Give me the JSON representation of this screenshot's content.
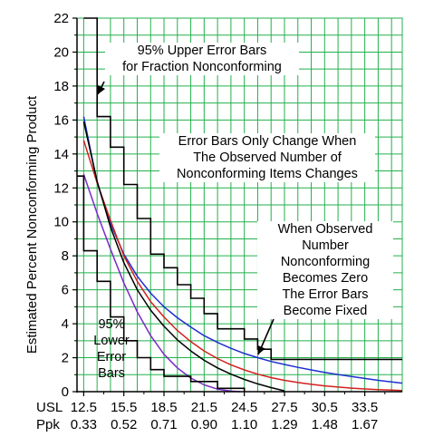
{
  "chart_data": {
    "type": "line",
    "title": "",
    "ylabel": "Estimated Percent Nonconforming Product",
    "xlabel": "",
    "x_row_labels": [
      "USL",
      "Ppk"
    ],
    "usl_ticks": [
      "12.5",
      "15.5",
      "18.5",
      "21.5",
      "24.5",
      "27.5",
      "30.5",
      "33.5"
    ],
    "ppk_ticks": [
      "0.33",
      "0.52",
      "0.71",
      "0.90",
      "1.10",
      "1.29",
      "1.48",
      "1.67"
    ],
    "xlim": [
      12.0,
      36.3
    ],
    "ylim": [
      0,
      22
    ],
    "ytick_labels": [
      "0",
      "2",
      "4",
      "6",
      "8",
      "10",
      "12",
      "14",
      "16",
      "18",
      "20",
      "22"
    ],
    "grid": true,
    "colors": {
      "grid": "#22b14c",
      "black": "#000000",
      "red": "#d42020",
      "blue": "#1f2fd0",
      "purple": "#7b2bc9"
    },
    "series": [
      {
        "color": "#1f2fd0",
        "x": [
          12.5,
          13.5,
          14.5,
          15.5,
          16.5,
          17.5,
          18.5,
          19.5,
          20.5,
          21.5,
          22.5,
          23.5,
          24.5,
          25.5,
          26.5,
          27.5,
          28.5,
          29.5,
          30.5,
          31.5,
          32.5,
          33.5,
          34.5,
          35.5,
          36.3
        ],
        "y": [
          16.2,
          12.3,
          9.9,
          8.1,
          6.8,
          5.8,
          5.0,
          4.35,
          3.8,
          3.3,
          2.9,
          2.55,
          2.25,
          2.0,
          1.78,
          1.6,
          1.43,
          1.28,
          1.14,
          1.01,
          0.89,
          0.78,
          0.67,
          0.57,
          0.5
        ]
      },
      {
        "color": "#d42020",
        "x": [
          12.5,
          13.5,
          14.5,
          15.5,
          16.5,
          17.5,
          18.5,
          19.5,
          20.5,
          21.5,
          22.5,
          23.5,
          24.5,
          25.5,
          26.5,
          27.5,
          28.5,
          29.5,
          30.5,
          31.5,
          32.5,
          33.5,
          34.5,
          35.5,
          36.3
        ],
        "y": [
          14.8,
          12.3,
          10.1,
          8.0,
          6.5,
          5.3,
          4.4,
          3.6,
          2.95,
          2.4,
          1.95,
          1.58,
          1.28,
          1.03,
          0.83,
          0.67,
          0.54,
          0.43,
          0.34,
          0.27,
          0.21,
          0.16,
          0.12,
          0.09,
          0.07
        ]
      },
      {
        "color": "#000000",
        "x": [
          12.5,
          13.5,
          14.5,
          15.5,
          16.5,
          17.5,
          18.5,
          19.5,
          20.5,
          21.5,
          22.5,
          23.5,
          24.5,
          25.5,
          26.5,
          27.5
        ],
        "y": [
          15.9,
          12.4,
          9.7,
          7.6,
          6.0,
          4.8,
          3.85,
          3.05,
          2.4,
          1.85,
          1.4,
          1.03,
          0.72,
          0.46,
          0.24,
          0.05
        ]
      },
      {
        "color": "#7b2bc9",
        "x": [
          12.5,
          13.5,
          14.5,
          15.5,
          16.5,
          17.5,
          18.5,
          19.5,
          20.5,
          21.5,
          22.5,
          23.5,
          24.2
        ],
        "y": [
          12.8,
          10.5,
          8.4,
          6.4,
          4.7,
          3.3,
          2.2,
          1.4,
          0.8,
          0.4,
          0.15,
          0.03,
          0.0
        ]
      },
      {
        "color": "#000000",
        "step": true,
        "x": [
          12.5,
          13.5,
          13.5,
          14.5,
          14.5,
          15.5,
          15.5,
          16.5,
          16.5,
          17.5,
          17.5,
          18.5,
          18.5,
          19.5,
          19.5,
          20.5,
          20.5,
          21.5,
          21.5,
          22.5,
          22.5,
          24.5,
          24.5,
          25.5,
          25.5,
          26.5,
          26.5,
          36.3
        ],
        "y": [
          22.0,
          22.0,
          16.2,
          16.2,
          14.4,
          14.4,
          12.2,
          12.2,
          10.2,
          10.2,
          8.1,
          8.1,
          7.3,
          7.3,
          6.3,
          6.3,
          5.5,
          5.5,
          4.6,
          4.6,
          3.7,
          3.7,
          3.1,
          3.1,
          2.5,
          2.5,
          1.9,
          1.9
        ]
      },
      {
        "color": "#000000",
        "step": true,
        "x": [
          12.0,
          12.5,
          12.5,
          13.5,
          13.5,
          14.5,
          14.5,
          15.5,
          15.5,
          16.5,
          16.5,
          17.5,
          17.5,
          18.5,
          18.5,
          20.5,
          20.5,
          22.5,
          22.5,
          24.5,
          24.5
        ],
        "y": [
          12.7,
          12.7,
          8.3,
          8.3,
          6.5,
          6.5,
          4.4,
          4.4,
          3.0,
          3.0,
          2.0,
          2.0,
          1.3,
          1.3,
          0.9,
          0.9,
          0.6,
          0.6,
          0.2,
          0.2,
          0.0
        ]
      }
    ],
    "annotations": [
      {
        "id": "upper",
        "lines": [
          "95% Upper Error Bars",
          "for Fraction Nonconforming"
        ]
      },
      {
        "id": "change",
        "lines": [
          "Error Bars Only Change When",
          "The Observed Number of",
          "Nonconforming Items Changes"
        ]
      },
      {
        "id": "zero",
        "lines": [
          "When  Observed",
          "Number",
          "Nonconforming",
          "Becomes Zero",
          "The Error Bars",
          "Become Fixed"
        ]
      },
      {
        "id": "lower",
        "lines": [
          "95%",
          "Lower",
          "Error",
          "Bars"
        ]
      }
    ]
  }
}
